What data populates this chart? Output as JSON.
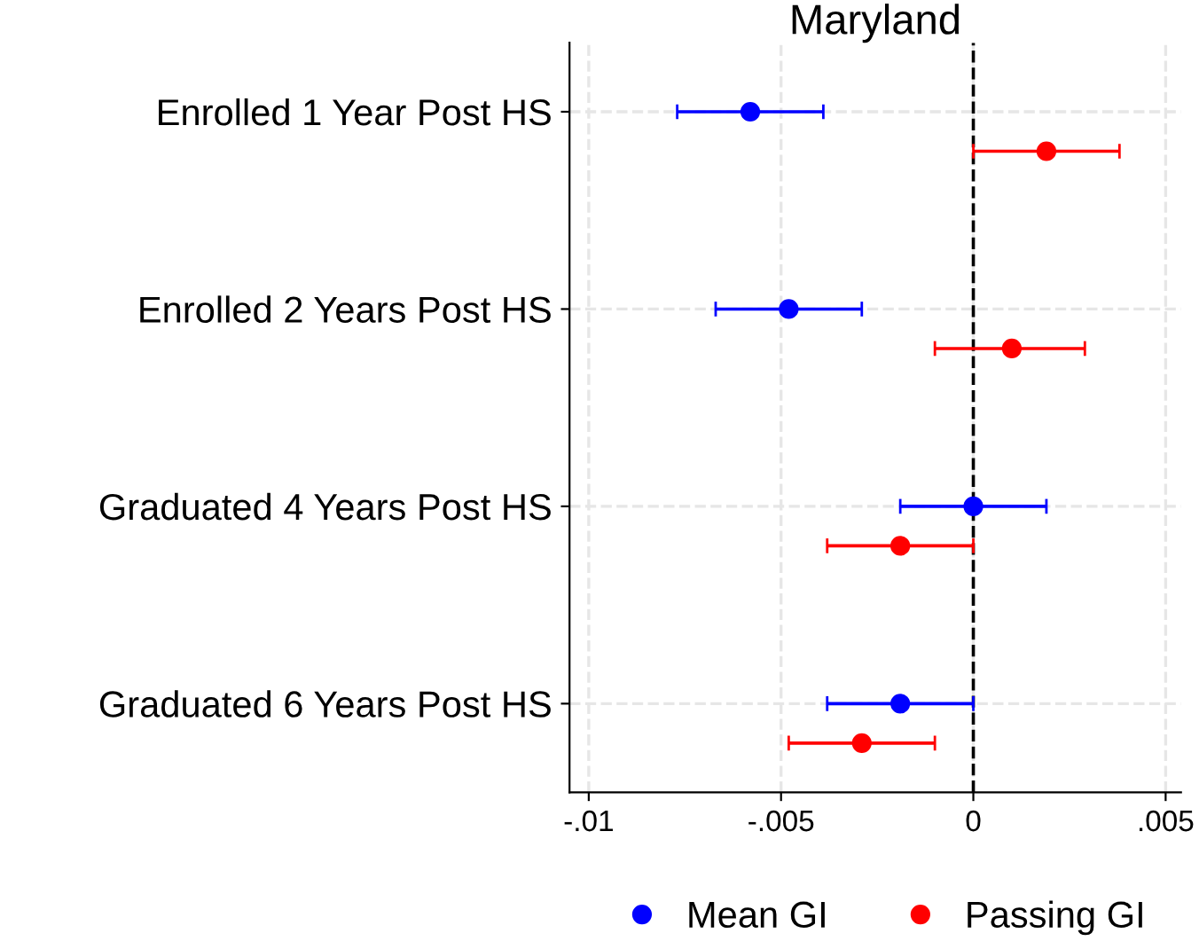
{
  "chart_data": {
    "type": "scatter",
    "orientation": "horizontal",
    "title": "Maryland",
    "categories": [
      "Enrolled 1 Year Post HS",
      "Enrolled 2 Years Post HS",
      "Graduated 4 Years Post HS",
      "Graduated 6 Years Post HS"
    ],
    "series": [
      {
        "name": "Mean GI",
        "color": "#0000ff",
        "values": [
          -0.0058,
          -0.0048,
          0.0,
          -0.0019
        ],
        "errors": [
          [
            -0.0077,
            -0.0039
          ],
          [
            -0.0067,
            -0.0029
          ],
          [
            -0.0019,
            0.0019
          ],
          [
            -0.0038,
            0.0
          ]
        ]
      },
      {
        "name": "Passing GI",
        "color": "#ff0000",
        "values": [
          0.0019,
          0.001,
          -0.0019,
          -0.0029
        ],
        "errors": [
          [
            0.0,
            0.0038
          ],
          [
            -0.001,
            0.0029
          ],
          [
            -0.0038,
            0.0
          ],
          [
            -0.0048,
            -0.001
          ]
        ]
      }
    ],
    "xlim": [
      -0.0105,
      0.0054
    ],
    "xticks": [
      {
        "value": -0.01,
        "label": "-.01"
      },
      {
        "value": -0.005,
        "label": "-.005"
      },
      0,
      {
        "value": 0.005,
        "label": ".005"
      }
    ],
    "ref_lines": [
      {
        "axis": "x",
        "value": 0,
        "color": "#000000",
        "line_style": "dashed"
      }
    ],
    "grid": true,
    "legend": "bottom",
    "marker": "circle"
  }
}
